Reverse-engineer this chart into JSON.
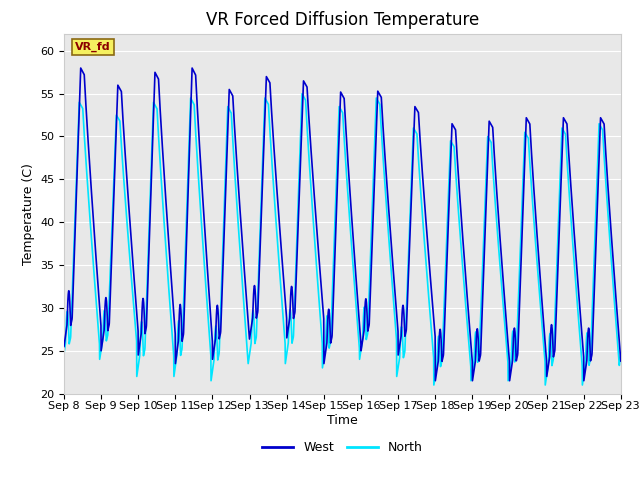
{
  "title": "VR Forced Diffusion Temperature",
  "xlabel": "Time",
  "ylabel": "Temperature (C)",
  "ylim": [
    20,
    62
  ],
  "yticks": [
    20,
    25,
    30,
    35,
    40,
    45,
    50,
    55,
    60
  ],
  "xtick_labels": [
    "Sep 8",
    "Sep 9",
    "Sep 10",
    "Sep 11",
    "Sep 12",
    "Sep 13",
    "Sep 14",
    "Sep 15",
    "Sep 16",
    "Sep 17",
    "Sep 18",
    "Sep 19",
    "Sep 20",
    "Sep 21",
    "Sep 22",
    "Sep 23"
  ],
  "west_color": "#0000CC",
  "north_color": "#00E5FF",
  "west_linewidth": 1.2,
  "north_linewidth": 1.2,
  "legend_label_west": "West",
  "legend_label_north": "North",
  "annotation_text": "VR_fd",
  "bg_color": "#e8e8e8",
  "title_fontsize": 12,
  "label_fontsize": 9,
  "tick_fontsize": 8,
  "west_peaks": [
    58.0,
    56.0,
    57.5,
    58.0,
    55.5,
    57.0,
    56.5,
    55.2,
    55.3,
    53.5,
    51.5,
    51.8,
    52.2,
    52.2,
    52.2
  ],
  "west_troughs": [
    25.5,
    25.0,
    24.5,
    23.5,
    24.0,
    26.5,
    26.5,
    23.5,
    25.0,
    24.5,
    21.5,
    21.5,
    21.5,
    22.0,
    21.5
  ],
  "north_peaks": [
    54.0,
    52.5,
    54.0,
    54.5,
    53.5,
    54.5,
    55.0,
    53.5,
    54.5,
    51.0,
    49.5,
    50.0,
    50.5,
    51.0,
    51.5
  ],
  "north_troughs": [
    23.5,
    24.0,
    22.0,
    22.0,
    21.5,
    23.5,
    23.5,
    23.0,
    24.0,
    22.0,
    21.0,
    21.5,
    21.5,
    21.0,
    21.0
  ]
}
